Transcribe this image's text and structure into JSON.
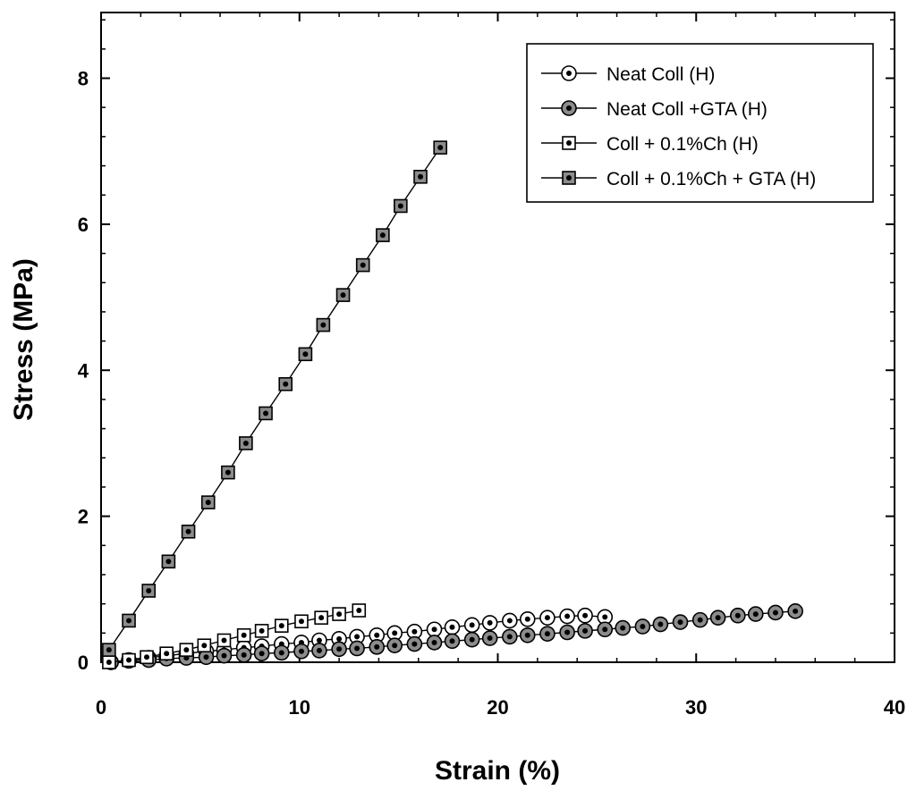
{
  "chart_data": {
    "type": "scatter",
    "title": "",
    "xlabel": "Strain (%)",
    "ylabel": "Stress (MPa)",
    "xlim": [
      0,
      40
    ],
    "ylim": [
      0,
      8.9
    ],
    "xticks": [
      0,
      10,
      20,
      30,
      40
    ],
    "yticks": [
      0,
      2,
      4,
      6,
      8
    ],
    "grid": false,
    "legend_position": "top-right",
    "series": [
      {
        "name": "Neat Coll (H)",
        "marker": "circle-open",
        "x": [
          0.5,
          1.4,
          2.4,
          3.3,
          4.3,
          5.3,
          6.2,
          7.2,
          8.1,
          9.1,
          10.1,
          11.0,
          12.0,
          12.9,
          13.9,
          14.8,
          15.8,
          16.8,
          17.7,
          18.7,
          19.6,
          20.6,
          21.5,
          22.5,
          23.5,
          24.4,
          25.4
        ],
        "y": [
          0.0,
          0.03,
          0.06,
          0.09,
          0.12,
          0.15,
          0.17,
          0.2,
          0.22,
          0.25,
          0.27,
          0.3,
          0.32,
          0.35,
          0.37,
          0.4,
          0.42,
          0.45,
          0.48,
          0.51,
          0.54,
          0.57,
          0.59,
          0.61,
          0.63,
          0.64,
          0.62
        ]
      },
      {
        "name": "Neat Coll +GTA (H)",
        "marker": "circle-filled",
        "x": [
          0.5,
          1.4,
          2.4,
          3.3,
          4.3,
          5.3,
          6.2,
          7.2,
          8.1,
          9.1,
          10.1,
          11.0,
          12.0,
          12.9,
          13.9,
          14.8,
          15.8,
          16.8,
          17.7,
          18.7,
          19.6,
          20.6,
          21.5,
          22.5,
          23.5,
          24.4,
          25.4,
          26.3,
          27.3,
          28.2,
          29.2,
          30.2,
          31.1,
          32.1,
          33.0,
          34.0,
          35.0
        ],
        "y": [
          0.0,
          0.02,
          0.03,
          0.05,
          0.06,
          0.07,
          0.09,
          0.1,
          0.12,
          0.13,
          0.15,
          0.16,
          0.18,
          0.19,
          0.21,
          0.23,
          0.25,
          0.27,
          0.29,
          0.31,
          0.33,
          0.35,
          0.37,
          0.39,
          0.41,
          0.43,
          0.45,
          0.47,
          0.49,
          0.52,
          0.55,
          0.58,
          0.61,
          0.64,
          0.66,
          0.68,
          0.7
        ]
      },
      {
        "name": "Coll + 0.1%Ch (H)",
        "marker": "square-open",
        "x": [
          0.4,
          1.4,
          2.3,
          3.3,
          4.3,
          5.2,
          6.2,
          7.2,
          8.1,
          9.1,
          10.1,
          11.1,
          12.0,
          13.0
        ],
        "y": [
          0.0,
          0.03,
          0.07,
          0.12,
          0.17,
          0.23,
          0.3,
          0.37,
          0.43,
          0.5,
          0.56,
          0.61,
          0.66,
          0.71
        ]
      },
      {
        "name": "Coll + 0.1%Ch + GTA (H)",
        "marker": "square-filled",
        "x": [
          0.4,
          1.4,
          2.4,
          3.4,
          4.4,
          5.4,
          6.4,
          7.3,
          8.3,
          9.3,
          10.3,
          11.2,
          12.2,
          13.2,
          14.2,
          15.1,
          16.1,
          17.1
        ],
        "y": [
          0.17,
          0.57,
          0.98,
          1.38,
          1.79,
          2.19,
          2.6,
          3.0,
          3.41,
          3.81,
          4.22,
          4.62,
          5.03,
          5.44,
          5.85,
          6.25,
          6.65,
          7.05
        ]
      }
    ]
  }
}
